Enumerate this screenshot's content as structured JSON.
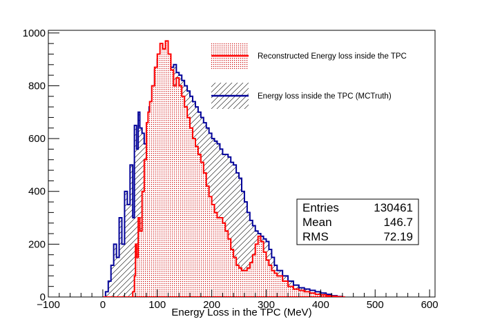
{
  "chart_data": {
    "type": "area",
    "xlabel": "Energy Loss in the TPC (MeV)",
    "ylabel": "",
    "xlim": [
      -100,
      610
    ],
    "ylim": [
      0,
      1010
    ],
    "xticks": [
      -100,
      0,
      100,
      200,
      300,
      400,
      500,
      600
    ],
    "xtick_labels": [
      "−100",
      "0",
      "100",
      "200",
      "300",
      "400",
      "500",
      "600"
    ],
    "yticks": [
      0,
      200,
      400,
      600,
      800,
      1000
    ],
    "ytick_labels": [
      "0",
      "200",
      "400",
      "600",
      "800",
      "1000"
    ],
    "legend": {
      "placement": "top-center",
      "entries": [
        {
          "label": "Reconstructed Energy loss inside the TPC",
          "color": "#ff0000"
        },
        {
          "label": "Energy loss inside the TPC (MCTruth)",
          "color": "#000099"
        }
      ]
    },
    "stats_box": {
      "placement": "right",
      "rows": [
        {
          "name": "Entries",
          "value": "130461"
        },
        {
          "name": "Mean",
          "value": "146.7"
        },
        {
          "name": "RMS",
          "value": "72.19"
        }
      ]
    },
    "series": [
      {
        "name": "Reconstructed Energy loss inside the TPC",
        "color": "#ff0000",
        "x": [
          0,
          10,
          20,
          30,
          40,
          50,
          55,
          58,
          60,
          62,
          65,
          68,
          72,
          76,
          80,
          83,
          86,
          90,
          95,
          100,
          105,
          110,
          115,
          120,
          125,
          130,
          135,
          140,
          145,
          150,
          155,
          160,
          165,
          170,
          175,
          180,
          185,
          190,
          195,
          200,
          205,
          210,
          215,
          220,
          225,
          230,
          235,
          240,
          245,
          250,
          255,
          260,
          265,
          270,
          275,
          280,
          285,
          290,
          295,
          300,
          305,
          310,
          315,
          320,
          330,
          340,
          350,
          360,
          370,
          380,
          390,
          400,
          410,
          420,
          430,
          440
        ],
        "values": [
          0,
          0,
          0,
          0,
          0,
          0,
          20,
          80,
          200,
          150,
          300,
          250,
          400,
          520,
          660,
          700,
          740,
          800,
          870,
          920,
          960,
          940,
          970,
          920,
          860,
          800,
          830,
          800,
          760,
          720,
          680,
          640,
          600,
          570,
          540,
          510,
          470,
          420,
          380,
          350,
          320,
          300,
          300,
          280,
          250,
          220,
          180,
          150,
          120,
          110,
          100,
          100,
          110,
          130,
          160,
          200,
          230,
          210,
          170,
          140,
          120,
          100,
          90,
          80,
          60,
          40,
          30,
          25,
          20,
          15,
          10,
          8,
          5,
          3,
          1,
          0
        ]
      },
      {
        "name": "Energy loss inside the TPC (MCTruth)",
        "color": "#000099",
        "x": [
          0,
          5,
          10,
          15,
          20,
          25,
          30,
          35,
          40,
          45,
          50,
          55,
          58,
          62,
          65,
          68,
          72,
          76,
          80,
          85,
          90,
          95,
          100,
          105,
          110,
          115,
          120,
          125,
          130,
          135,
          140,
          145,
          150,
          155,
          160,
          165,
          170,
          175,
          180,
          185,
          190,
          195,
          200,
          205,
          210,
          215,
          220,
          225,
          230,
          235,
          240,
          245,
          250,
          255,
          260,
          265,
          270,
          275,
          280,
          285,
          290,
          295,
          300,
          305,
          310,
          315,
          320,
          330,
          340,
          350,
          360,
          370,
          380,
          390,
          400,
          410,
          420,
          430,
          440
        ],
        "values": [
          0,
          20,
          60,
          120,
          200,
          150,
          300,
          200,
          400,
          350,
          500,
          300,
          650,
          560,
          700,
          640,
          620,
          580,
          640,
          720,
          800,
          860,
          900,
          850,
          860,
          860,
          820,
          870,
          880,
          850,
          840,
          820,
          800,
          780,
          760,
          740,
          720,
          700,
          680,
          660,
          640,
          620,
          600,
          590,
          580,
          560,
          540,
          540,
          530,
          510,
          500,
          470,
          450,
          400,
          360,
          320,
          290,
          270,
          250,
          240,
          230,
          220,
          210,
          180,
          150,
          120,
          100,
          80,
          60,
          45,
          35,
          30,
          25,
          20,
          15,
          10,
          5,
          2,
          0
        ]
      }
    ]
  }
}
